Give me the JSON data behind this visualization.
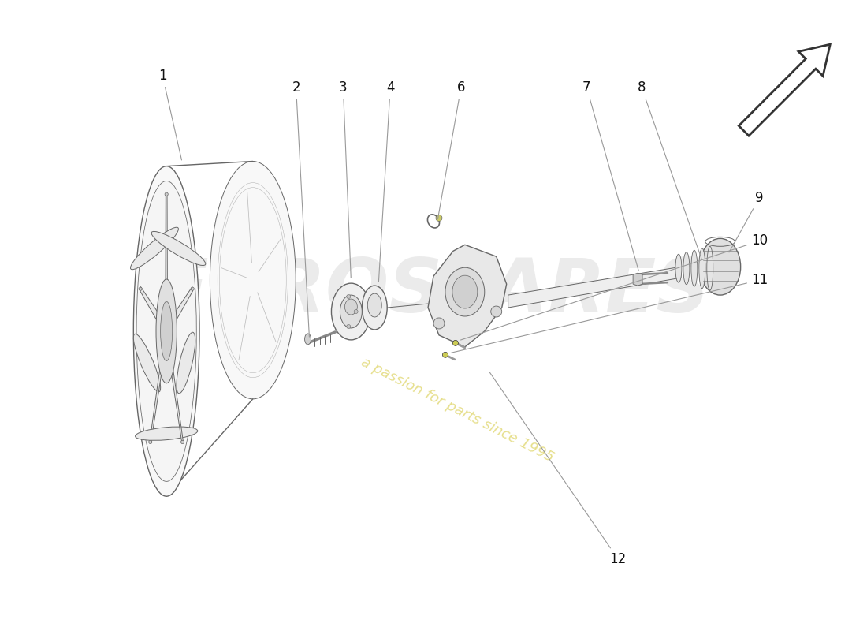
{
  "background_color": "#ffffff",
  "watermark_text1": "a passion for parts since 1995",
  "watermark_color": "#c8b800",
  "watermark_alpha": 0.45,
  "diagram_line_color": "#666666",
  "diagram_line_color_dark": "#333333",
  "diagram_fill_light": "#f5f5f5",
  "diagram_fill_medium": "#e8e8e8",
  "diagram_fill_dark": "#d0d0d0",
  "part_label_color": "#111111",
  "part_label_fontsize": 12,
  "yellow_green": "#c8c832",
  "leader_color": "#999999",
  "eurospares_color": "#d8d8d8",
  "eurospares_alpha": 0.5,
  "arrow_hollow_color": "#333333",
  "figsize": [
    11.0,
    8.0
  ],
  "dpi": 100
}
